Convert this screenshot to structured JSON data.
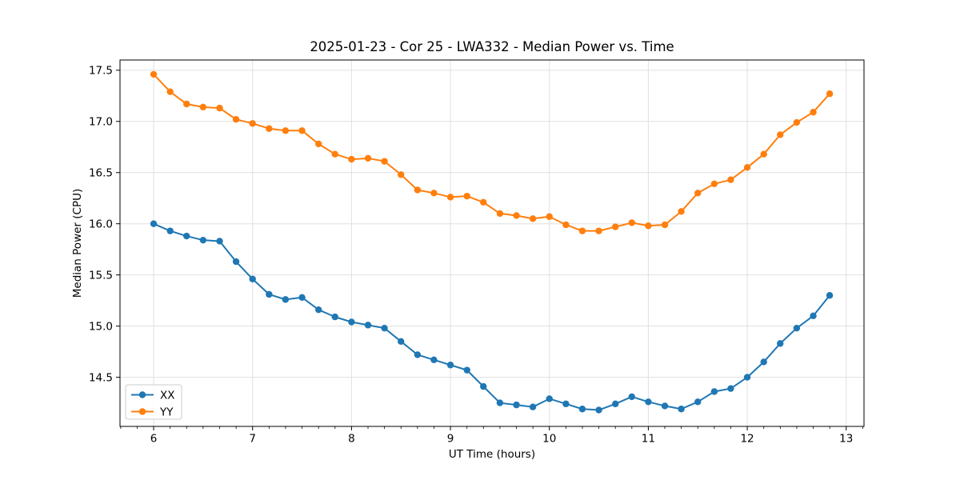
{
  "figure": {
    "background": "#ffffff"
  },
  "chart_data": {
    "type": "line",
    "title": "2025-01-23 - Cor 25 - LWA332 - Median Power vs. Time",
    "xlabel": "UT Time (hours)",
    "ylabel": "Median Power (CPU)",
    "xlim": [
      5.66,
      13.18
    ],
    "ylim": [
      14.02,
      17.6
    ],
    "xticks": [
      6,
      7,
      8,
      9,
      10,
      11,
      12,
      13
    ],
    "xtick_labels": [
      "6",
      "7",
      "8",
      "9",
      "10",
      "11",
      "12",
      "13"
    ],
    "yticks": [
      14.5,
      15.0,
      15.5,
      16.0,
      16.5,
      17.0,
      17.5
    ],
    "ytick_labels": [
      "14.5",
      "15.0",
      "15.5",
      "16.0",
      "16.5",
      "17.0",
      "17.5"
    ],
    "x_minor_interval": 0.16667,
    "grid": "major",
    "grid_color": "#e0e0e0",
    "legend_position": "lower left",
    "x": [
      6.0,
      6.167,
      6.333,
      6.5,
      6.667,
      6.833,
      7.0,
      7.167,
      7.333,
      7.5,
      7.667,
      7.833,
      8.0,
      8.167,
      8.333,
      8.5,
      8.667,
      8.833,
      9.0,
      9.167,
      9.333,
      9.5,
      9.667,
      9.833,
      10.0,
      10.167,
      10.333,
      10.5,
      10.667,
      10.833,
      11.0,
      11.167,
      11.333,
      11.5,
      11.667,
      11.833,
      12.0,
      12.167,
      12.333,
      12.5,
      12.667,
      12.833
    ],
    "series": [
      {
        "name": "XX",
        "color": "#1f77b4",
        "values": [
          16.0,
          15.93,
          15.88,
          15.84,
          15.83,
          15.63,
          15.46,
          15.31,
          15.26,
          15.28,
          15.16,
          15.09,
          15.04,
          15.01,
          14.98,
          14.85,
          14.72,
          14.67,
          14.62,
          14.57,
          14.41,
          14.25,
          14.23,
          14.21,
          14.29,
          14.24,
          14.19,
          14.18,
          14.24,
          14.31,
          14.26,
          14.22,
          14.19,
          14.26,
          14.36,
          14.39,
          14.5,
          14.65,
          14.83,
          14.98,
          15.1,
          15.3
        ]
      },
      {
        "name": "YY",
        "color": "#ff7f0e",
        "values": [
          17.46,
          17.29,
          17.17,
          17.14,
          17.13,
          17.02,
          16.98,
          16.93,
          16.91,
          16.91,
          16.78,
          16.68,
          16.63,
          16.64,
          16.61,
          16.48,
          16.33,
          16.3,
          16.26,
          16.27,
          16.21,
          16.1,
          16.08,
          16.05,
          16.07,
          15.99,
          15.93,
          15.93,
          15.97,
          16.01,
          15.98,
          15.99,
          16.12,
          16.3,
          16.39,
          16.43,
          16.55,
          16.68,
          16.87,
          16.99,
          17.09,
          17.27
        ]
      }
    ]
  }
}
